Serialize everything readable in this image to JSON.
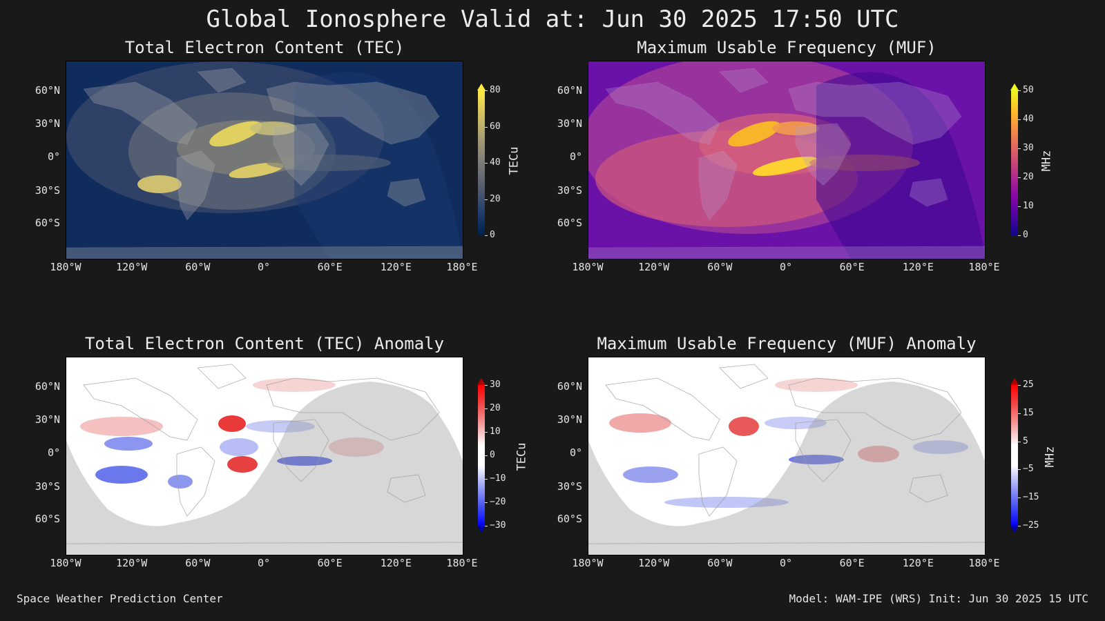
{
  "title": "Global Ionosphere Valid at: Jun 30 2025 17:50 UTC",
  "footer": {
    "left": "Space Weather Prediction Center",
    "right": "Model: WAM-IPE (WRS) Init: Jun 30 2025 15 UTC"
  },
  "axes": {
    "lon_labels": [
      "180°W",
      "120°W",
      "60°W",
      "0°",
      "60°E",
      "120°E",
      "180°E"
    ],
    "lat_labels": [
      "60°N",
      "30°N",
      "0°",
      "30°S",
      "60°S"
    ]
  },
  "panels": {
    "tec": {
      "title": "Total Electron Content (TEC)",
      "colorbar": {
        "label": "TECu",
        "ticks": [
          "80",
          "60",
          "40",
          "20",
          "0"
        ],
        "colormap": "cividis"
      }
    },
    "muf": {
      "title": "Maximum Usable Frequency (MUF)",
      "colorbar": {
        "label": "MHz",
        "ticks": [
          "50",
          "40",
          "30",
          "20",
          "10",
          "0"
        ],
        "colormap": "plasma"
      }
    },
    "tec_anomaly": {
      "title": "Total Electron Content (TEC) Anomaly",
      "colorbar": {
        "label": "TECu",
        "ticks": [
          "30",
          "20",
          "10",
          "0",
          "−10",
          "−20",
          "−30"
        ],
        "colormap": "bwr"
      }
    },
    "muf_anomaly": {
      "title": "Maximum Usable Frequency (MUF) Anomaly",
      "colorbar": {
        "label": "MHz",
        "ticks": [
          "25",
          "15",
          "5",
          "−5",
          "−15",
          "−25"
        ],
        "colormap": "bwr"
      }
    }
  },
  "colors": {
    "background": "#191919",
    "tec_low": "#00204c",
    "tec_high": "#ffe945",
    "muf_low": "#0d0887",
    "muf_high": "#f0f921",
    "anomaly_neg": "#0000ff",
    "anomaly_pos": "#ff0000",
    "night_shade": "#9a9a9a"
  }
}
